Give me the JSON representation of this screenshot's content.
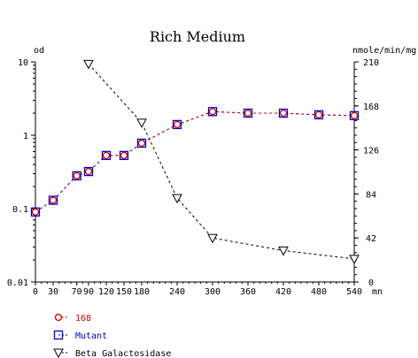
{
  "chart_data": {
    "type": "line",
    "title": "Rich Medium",
    "y_left": {
      "label": "od",
      "scale": "log",
      "range": [
        0.01,
        10
      ],
      "ticks": [
        "0.01",
        "0.1",
        "1",
        "10"
      ]
    },
    "y_right": {
      "label": "nmole/min/mg",
      "range": [
        0,
        210
      ],
      "ticks": [
        "0",
        "42",
        "84",
        "126",
        "168",
        "210"
      ]
    },
    "x": {
      "unit_label": "mn",
      "range": [
        0,
        540
      ],
      "ticks": [
        "0",
        "30",
        "70",
        "90",
        "120",
        "150",
        "180",
        "240",
        "300",
        "360",
        "420",
        "480",
        "540"
      ]
    },
    "series": [
      {
        "name": "168",
        "axis": "left",
        "color": "#cc0000",
        "marker": "circle",
        "x": [
          0,
          30,
          70,
          90,
          120,
          150,
          180,
          240,
          300,
          360,
          420,
          480,
          540
        ],
        "y": [
          0.09,
          0.13,
          0.28,
          0.32,
          0.53,
          0.53,
          0.78,
          1.4,
          2.1,
          2.0,
          2.0,
          1.9,
          1.85
        ]
      },
      {
        "name": "Mutant",
        "axis": "left",
        "color": "#0000cc",
        "marker": "square",
        "x": [
          0,
          30,
          70,
          90,
          120,
          150,
          180,
          240,
          300,
          360,
          420,
          480,
          540
        ],
        "y": [
          0.09,
          0.13,
          0.28,
          0.32,
          0.53,
          0.53,
          0.78,
          1.4,
          2.1,
          2.0,
          2.0,
          1.9,
          1.85
        ]
      },
      {
        "name": "Beta Galactosidase",
        "axis": "right",
        "color": "#000000",
        "marker": "triangle-down",
        "x": [
          90,
          180,
          240,
          300,
          420,
          540
        ],
        "y": [
          208,
          152,
          80,
          42,
          30,
          22
        ]
      }
    ],
    "legend_placement": "bottom-left"
  }
}
